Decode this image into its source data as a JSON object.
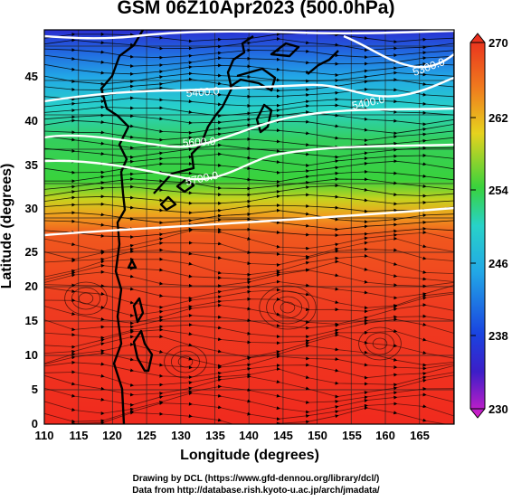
{
  "title": "GSM 06Z10Apr2023 (500.0hPa)",
  "x_axis": {
    "label": "Longitude (degrees)",
    "ticks": [
      "110",
      "115",
      "120",
      "125",
      "130",
      "135",
      "140",
      "145",
      "150",
      "155",
      "160",
      "165"
    ]
  },
  "y_axis": {
    "label": "Latitude  (degrees)",
    "ticks": [
      "0",
      "5",
      "10",
      "15",
      "20",
      "25",
      "30",
      "35",
      "40",
      "45"
    ]
  },
  "colorbar": {
    "ticks": [
      "270",
      "262",
      "254",
      "246",
      "238",
      "230"
    ]
  },
  "contour_labels": [
    "5400.0",
    "5400.0",
    "5600.0",
    "5700.0",
    "5300.0"
  ],
  "credits": [
    "Drawing by DCL (https://www.gfd-dennou.org/library/dcl/)",
    "Data from http://database.rish.kyoto-u.ac.jp/arch/jmadata/"
  ],
  "colors": {
    "magenta": "#d81ec8",
    "blue": "#1a2fd8",
    "cyan": "#26cfe6",
    "green": "#34d13c",
    "yellow": "#e6d21e",
    "orange": "#f07a1e",
    "red": "#e9281e"
  }
}
